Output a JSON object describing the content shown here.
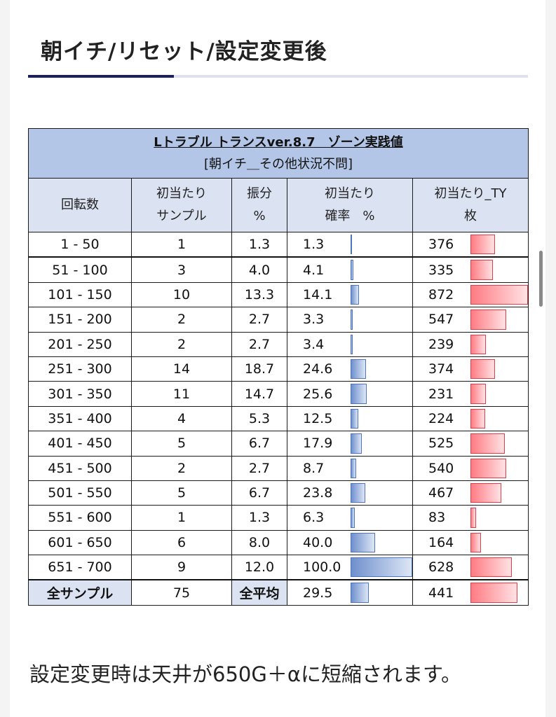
{
  "heading": "朝イチ/リセット/設定変更後",
  "table": {
    "title": "Lトラブル トランスver.8.7　ゾーン実践値",
    "subtitle": "[朝イチ＿その他状況不問]",
    "headers": {
      "range": "回転数",
      "sample_l1": "初当たり",
      "sample_l2": "サンプル",
      "share_l1": "振分",
      "share_l2": "%",
      "rate_l1": "初当たり",
      "rate_l2": "確率　%",
      "ty_l1": "初当たり_TY",
      "ty_l2": "枚"
    },
    "rows": [
      {
        "range": "1 - 50",
        "sample": "1",
        "share": "1.3",
        "rate": "1.3",
        "ty": "376"
      },
      {
        "range": "51 - 100",
        "sample": "3",
        "share": "4.0",
        "rate": "4.1",
        "ty": "335"
      },
      {
        "range": "101 - 150",
        "sample": "10",
        "share": "13.3",
        "rate": "14.1",
        "ty": "872"
      },
      {
        "range": "151 - 200",
        "sample": "2",
        "share": "2.7",
        "rate": "3.3",
        "ty": "547"
      },
      {
        "range": "201 - 250",
        "sample": "2",
        "share": "2.7",
        "rate": "3.4",
        "ty": "239"
      },
      {
        "range": "251 - 300",
        "sample": "14",
        "share": "18.7",
        "rate": "24.6",
        "ty": "374"
      },
      {
        "range": "301 - 350",
        "sample": "11",
        "share": "14.7",
        "rate": "25.6",
        "ty": "231"
      },
      {
        "range": "351 - 400",
        "sample": "4",
        "share": "5.3",
        "rate": "12.5",
        "ty": "224"
      },
      {
        "range": "401 - 450",
        "sample": "5",
        "share": "6.7",
        "rate": "17.9",
        "ty": "525"
      },
      {
        "range": "451 - 500",
        "sample": "2",
        "share": "2.7",
        "rate": "8.7",
        "ty": "540"
      },
      {
        "range": "501 - 550",
        "sample": "5",
        "share": "6.7",
        "rate": "23.8",
        "ty": "467"
      },
      {
        "range": "551 - 600",
        "sample": "1",
        "share": "1.3",
        "rate": "6.3",
        "ty": "83"
      },
      {
        "range": "601 - 650",
        "sample": "6",
        "share": "8.0",
        "rate": "40.0",
        "ty": "164"
      },
      {
        "range": "651 - 700",
        "sample": "9",
        "share": "12.0",
        "rate": "100.0",
        "ty": "628"
      }
    ],
    "footer": {
      "label": "全サンプル",
      "sample": "75",
      "avg_label": "全平均",
      "rate": "29.5",
      "ty": "441"
    }
  },
  "note": "設定変更時は天井が650G＋αに短縮されます。",
  "colors": {
    "title_bg": "#b4c6e7",
    "header_bg": "#dbe3f3",
    "rate_bar": "#6f90cd",
    "ty_bar": "#ff7b83",
    "rule_dark": "#1a2060"
  }
}
